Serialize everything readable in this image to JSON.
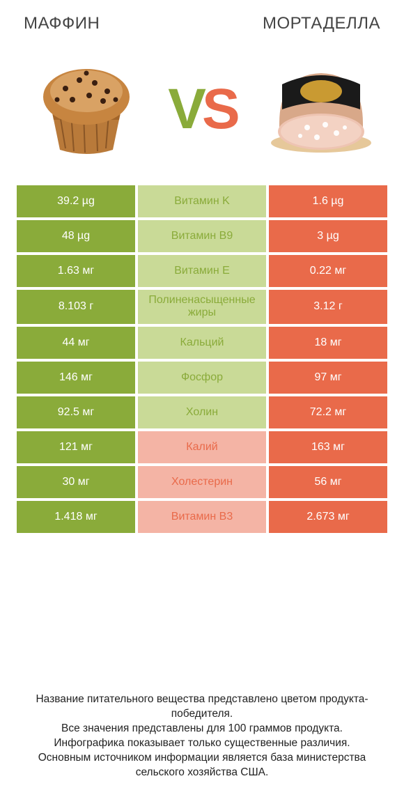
{
  "header": {
    "left_title": "МАФФИН",
    "right_title": "МОРТАДЕЛЛА"
  },
  "vs": {
    "v": "V",
    "s": "S"
  },
  "colors": {
    "green": "#8aab3a",
    "green_mid": "#c9da97",
    "orange": "#e96a4a",
    "orange_mid": "#f4b4a5",
    "white": "#ffffff"
  },
  "rows": [
    {
      "left": "39.2 µg",
      "mid": "Витамин K",
      "right": "1.6 µg",
      "winner": "left"
    },
    {
      "left": "48 µg",
      "mid": "Витамин B9",
      "right": "3 µg",
      "winner": "left"
    },
    {
      "left": "1.63 мг",
      "mid": "Витамин E",
      "right": "0.22 мг",
      "winner": "left"
    },
    {
      "left": "8.103 г",
      "mid": "Полиненасыщенные жиры",
      "right": "3.12 г",
      "winner": "left"
    },
    {
      "left": "44 мг",
      "mid": "Кальций",
      "right": "18 мг",
      "winner": "left"
    },
    {
      "left": "146 мг",
      "mid": "Фосфор",
      "right": "97 мг",
      "winner": "left"
    },
    {
      "left": "92.5 мг",
      "mid": "Холин",
      "right": "72.2 мг",
      "winner": "left"
    },
    {
      "left": "121 мг",
      "mid": "Калий",
      "right": "163 мг",
      "winner": "right"
    },
    {
      "left": "30 мг",
      "mid": "Холестерин",
      "right": "56 мг",
      "winner": "right"
    },
    {
      "left": "1.418 мг",
      "mid": "Витамин B3",
      "right": "2.673 мг",
      "winner": "right"
    }
  ],
  "footer": {
    "line1": "Название питательного вещества представлено цветом продукта-победителя.",
    "line2": "Все значения представлены для 100 граммов продукта.",
    "line3": "Инфографика показывает только существенные различия.",
    "line4": "Основным источником информации является база министерства сельского хозяйства США."
  }
}
